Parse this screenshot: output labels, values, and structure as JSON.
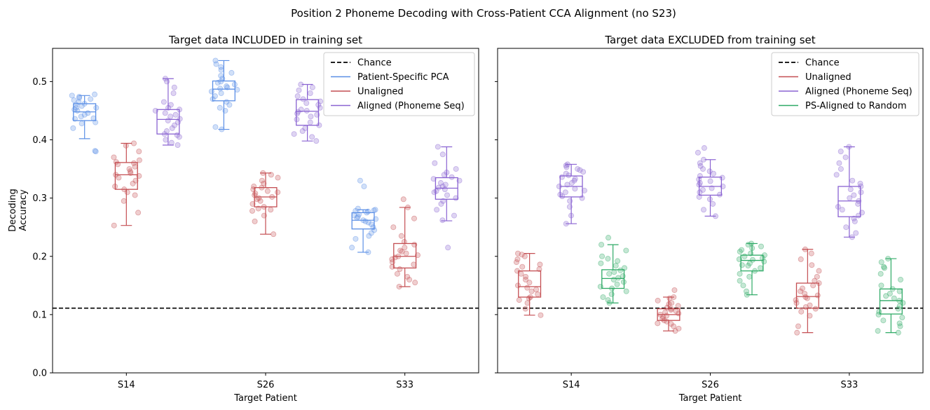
{
  "suptitle": "Position 2 Phoneme Decoding with Cross-Patient CCA Alignment (no S23)",
  "shared_ylabel": "Decoding\nAccuracy",
  "chart_data": [
    {
      "type": "box",
      "title": "Target data INCLUDED in training set",
      "xlabel": "Target Patient",
      "ylabel": "Decoding\nAccuracy",
      "categories": [
        "S14",
        "S26",
        "S33"
      ],
      "ylim": [
        0,
        0.557
      ],
      "yticks": [
        0.0,
        0.1,
        0.2,
        0.3,
        0.4,
        0.5
      ],
      "chance": 0.111,
      "legend": {
        "position": "top-right",
        "entries": [
          {
            "label": "Chance",
            "color": "#000000",
            "dashed": true
          },
          {
            "label": "Patient-Specific PCA",
            "color": "#5b8fe6"
          },
          {
            "label": "Unaligned",
            "color": "#c44e52"
          },
          {
            "label": "Aligned (Phoneme Seq)",
            "color": "#8a63d2"
          }
        ]
      },
      "series": [
        {
          "name": "Patient-Specific PCA",
          "color": "#5b8fe6",
          "offset": -0.3,
          "boxes": [
            {
              "min": 0.402,
              "q1": 0.433,
              "median": 0.448,
              "q3": 0.462,
              "max": 0.476,
              "points": [
                0.381,
                0.38,
                0.42,
                0.428,
                0.43,
                0.436,
                0.44,
                0.443,
                0.446,
                0.45,
                0.452,
                0.455,
                0.458,
                0.46,
                0.462,
                0.465,
                0.468,
                0.47,
                0.472,
                0.474,
                0.476,
                0.478,
                0.455,
                0.437
              ]
            },
            {
              "min": 0.418,
              "q1": 0.467,
              "median": 0.487,
              "q3": 0.501,
              "max": 0.536,
              "points": [
                0.418,
                0.422,
                0.45,
                0.455,
                0.46,
                0.465,
                0.47,
                0.475,
                0.48,
                0.483,
                0.486,
                0.488,
                0.49,
                0.492,
                0.495,
                0.498,
                0.5,
                0.505,
                0.51,
                0.515,
                0.52,
                0.525,
                0.53,
                0.536
              ]
            },
            {
              "min": 0.207,
              "q1": 0.247,
              "median": 0.262,
              "q3": 0.275,
              "max": 0.28,
              "points": [
                0.207,
                0.215,
                0.23,
                0.235,
                0.24,
                0.245,
                0.25,
                0.255,
                0.258,
                0.26,
                0.262,
                0.264,
                0.266,
                0.268,
                0.27,
                0.272,
                0.275,
                0.277,
                0.278,
                0.279,
                0.28,
                0.282,
                0.32,
                0.33
              ]
            }
          ]
        },
        {
          "name": "Unaligned",
          "color": "#c44e52",
          "offset": 0.0,
          "boxes": [
            {
              "min": 0.253,
              "q1": 0.315,
              "median": 0.34,
              "q3": 0.361,
              "max": 0.394,
              "points": [
                0.253,
                0.275,
                0.295,
                0.305,
                0.31,
                0.315,
                0.32,
                0.325,
                0.33,
                0.335,
                0.338,
                0.34,
                0.343,
                0.346,
                0.35,
                0.354,
                0.358,
                0.36,
                0.362,
                0.365,
                0.37,
                0.38,
                0.39,
                0.394
              ]
            },
            {
              "min": 0.238,
              "q1": 0.285,
              "median": 0.302,
              "q3": 0.318,
              "max": 0.343,
              "points": [
                0.238,
                0.26,
                0.27,
                0.278,
                0.282,
                0.285,
                0.29,
                0.295,
                0.298,
                0.3,
                0.302,
                0.305,
                0.308,
                0.31,
                0.312,
                0.315,
                0.318,
                0.32,
                0.325,
                0.33,
                0.335,
                0.34,
                0.343,
                0.28
              ]
            },
            {
              "min": 0.148,
              "q1": 0.18,
              "median": 0.2,
              "q3": 0.222,
              "max": 0.284,
              "points": [
                0.148,
                0.155,
                0.16,
                0.165,
                0.17,
                0.178,
                0.182,
                0.186,
                0.19,
                0.195,
                0.198,
                0.2,
                0.202,
                0.205,
                0.208,
                0.21,
                0.215,
                0.22,
                0.225,
                0.235,
                0.25,
                0.265,
                0.284,
                0.298
              ]
            }
          ]
        },
        {
          "name": "Aligned (Phoneme Seq)",
          "color": "#8a63d2",
          "offset": 0.3,
          "boxes": [
            {
              "min": 0.391,
              "q1": 0.41,
              "median": 0.435,
              "q3": 0.452,
              "max": 0.505,
              "points": [
                0.391,
                0.395,
                0.4,
                0.405,
                0.408,
                0.41,
                0.415,
                0.42,
                0.425,
                0.43,
                0.433,
                0.436,
                0.44,
                0.443,
                0.446,
                0.45,
                0.452,
                0.455,
                0.46,
                0.465,
                0.48,
                0.49,
                0.5,
                0.505
              ]
            },
            {
              "min": 0.398,
              "q1": 0.425,
              "median": 0.449,
              "q3": 0.469,
              "max": 0.495,
              "points": [
                0.398,
                0.405,
                0.41,
                0.415,
                0.42,
                0.425,
                0.43,
                0.435,
                0.44,
                0.445,
                0.448,
                0.45,
                0.452,
                0.455,
                0.46,
                0.463,
                0.466,
                0.47,
                0.475,
                0.48,
                0.485,
                0.49,
                0.495,
                0.443
              ]
            },
            {
              "min": 0.261,
              "q1": 0.298,
              "median": 0.317,
              "q3": 0.335,
              "max": 0.388,
              "points": [
                0.215,
                0.262,
                0.27,
                0.28,
                0.29,
                0.295,
                0.3,
                0.305,
                0.31,
                0.312,
                0.315,
                0.318,
                0.32,
                0.323,
                0.326,
                0.33,
                0.333,
                0.336,
                0.34,
                0.344,
                0.35,
                0.36,
                0.375,
                0.388
              ]
            }
          ]
        }
      ]
    },
    {
      "type": "box",
      "title": "Target data EXCLUDED from training set",
      "xlabel": "Target Patient",
      "categories": [
        "S14",
        "S26",
        "S33"
      ],
      "ylim": [
        0,
        0.557
      ],
      "chance": 0.111,
      "legend": {
        "position": "top-right",
        "entries": [
          {
            "label": "Chance",
            "color": "#000000",
            "dashed": true
          },
          {
            "label": "Unaligned",
            "color": "#c44e52"
          },
          {
            "label": "Aligned (Phoneme Seq)",
            "color": "#8a63d2"
          },
          {
            "label": "PS-Aligned to Random",
            "color": "#2eaa66"
          }
        ]
      },
      "series": [
        {
          "name": "Unaligned",
          "color": "#c44e52",
          "offset": -0.3,
          "boxes": [
            {
              "min": 0.099,
              "q1": 0.13,
              "median": 0.148,
              "q3": 0.175,
              "max": 0.205,
              "points": [
                0.099,
                0.11,
                0.12,
                0.125,
                0.128,
                0.13,
                0.135,
                0.14,
                0.143,
                0.146,
                0.15,
                0.155,
                0.16,
                0.165,
                0.17,
                0.175,
                0.178,
                0.182,
                0.186,
                0.19,
                0.195,
                0.2,
                0.203,
                0.205
              ]
            },
            {
              "min": 0.072,
              "q1": 0.09,
              "median": 0.1,
              "q3": 0.11,
              "max": 0.13,
              "points": [
                0.072,
                0.076,
                0.08,
                0.084,
                0.088,
                0.09,
                0.093,
                0.096,
                0.098,
                0.1,
                0.102,
                0.104,
                0.106,
                0.108,
                0.11,
                0.112,
                0.115,
                0.118,
                0.12,
                0.124,
                0.128,
                0.13,
                0.142,
                0.085
              ]
            },
            {
              "min": 0.069,
              "q1": 0.111,
              "median": 0.131,
              "q3": 0.154,
              "max": 0.212,
              "points": [
                0.069,
                0.08,
                0.098,
                0.105,
                0.11,
                0.113,
                0.116,
                0.12,
                0.125,
                0.128,
                0.13,
                0.133,
                0.136,
                0.14,
                0.145,
                0.15,
                0.154,
                0.158,
                0.165,
                0.175,
                0.185,
                0.195,
                0.205,
                0.212
              ]
            }
          ]
        },
        {
          "name": "Aligned (Phoneme Seq)",
          "color": "#8a63d2",
          "offset": 0.0,
          "boxes": [
            {
              "min": 0.256,
              "q1": 0.302,
              "median": 0.32,
              "q3": 0.338,
              "max": 0.358,
              "points": [
                0.256,
                0.27,
                0.285,
                0.295,
                0.3,
                0.303,
                0.306,
                0.31,
                0.313,
                0.316,
                0.32,
                0.323,
                0.326,
                0.33,
                0.333,
                0.336,
                0.339,
                0.342,
                0.345,
                0.348,
                0.35,
                0.353,
                0.356,
                0.358
              ]
            },
            {
              "min": 0.269,
              "q1": 0.305,
              "median": 0.32,
              "q3": 0.336,
              "max": 0.366,
              "points": [
                0.269,
                0.28,
                0.29,
                0.298,
                0.302,
                0.306,
                0.31,
                0.314,
                0.317,
                0.32,
                0.323,
                0.326,
                0.329,
                0.332,
                0.335,
                0.338,
                0.342,
                0.346,
                0.35,
                0.355,
                0.36,
                0.366,
                0.378,
                0.386
              ]
            },
            {
              "min": 0.233,
              "q1": 0.268,
              "median": 0.295,
              "q3": 0.32,
              "max": 0.388,
              "points": [
                0.233,
                0.24,
                0.25,
                0.26,
                0.265,
                0.27,
                0.275,
                0.28,
                0.285,
                0.29,
                0.295,
                0.3,
                0.305,
                0.31,
                0.315,
                0.32,
                0.325,
                0.33,
                0.34,
                0.35,
                0.36,
                0.37,
                0.38,
                0.388
              ]
            }
          ]
        },
        {
          "name": "PS-Aligned to Random",
          "color": "#2eaa66",
          "offset": 0.3,
          "boxes": [
            {
              "min": 0.12,
              "q1": 0.145,
              "median": 0.162,
              "q3": 0.177,
              "max": 0.22,
              "points": [
                0.12,
                0.125,
                0.13,
                0.135,
                0.14,
                0.145,
                0.148,
                0.152,
                0.156,
                0.16,
                0.163,
                0.166,
                0.17,
                0.173,
                0.176,
                0.18,
                0.184,
                0.188,
                0.192,
                0.196,
                0.2,
                0.21,
                0.22,
                0.232
              ]
            },
            {
              "min": 0.134,
              "q1": 0.175,
              "median": 0.193,
              "q3": 0.202,
              "max": 0.222,
              "points": [
                0.134,
                0.14,
                0.15,
                0.158,
                0.165,
                0.17,
                0.175,
                0.18,
                0.184,
                0.188,
                0.191,
                0.194,
                0.197,
                0.2,
                0.202,
                0.205,
                0.208,
                0.211,
                0.214,
                0.217,
                0.22,
                0.222,
                0.195,
                0.185
              ]
            },
            {
              "min": 0.069,
              "q1": 0.101,
              "median": 0.124,
              "q3": 0.144,
              "max": 0.196,
              "points": [
                0.069,
                0.072,
                0.08,
                0.085,
                0.09,
                0.095,
                0.1,
                0.105,
                0.11,
                0.115,
                0.12,
                0.124,
                0.128,
                0.132,
                0.136,
                0.14,
                0.144,
                0.15,
                0.16,
                0.17,
                0.18,
                0.19,
                0.196,
                0.182
              ]
            }
          ]
        }
      ]
    }
  ]
}
